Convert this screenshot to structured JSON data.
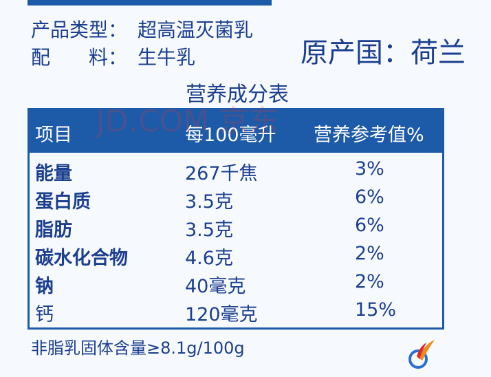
{
  "product": {
    "type_label": "产品类型：",
    "type_value": "超高温灭菌乳",
    "ingredients_label": "配　　料：",
    "ingredients_value": "生牛乳",
    "origin": "原产国：荷兰"
  },
  "table": {
    "title": "营养成分表",
    "watermark": "JD.COM 京东",
    "header": [
      "项目",
      "每100毫升",
      "营养参考值%"
    ],
    "rows": [
      [
        "能量",
        "267千焦",
        "3%"
      ],
      [
        "蛋白质",
        "3.5克",
        "6%"
      ],
      [
        "脂肪",
        "3.5克",
        "6%"
      ],
      [
        "碳水化合物",
        "4.6克",
        "2%"
      ],
      [
        "钠",
        "40毫克",
        "2%"
      ],
      [
        "钙",
        "120毫克",
        "15%"
      ]
    ]
  },
  "footnote": "非脂乳固体含量≥8.1g/100g"
}
